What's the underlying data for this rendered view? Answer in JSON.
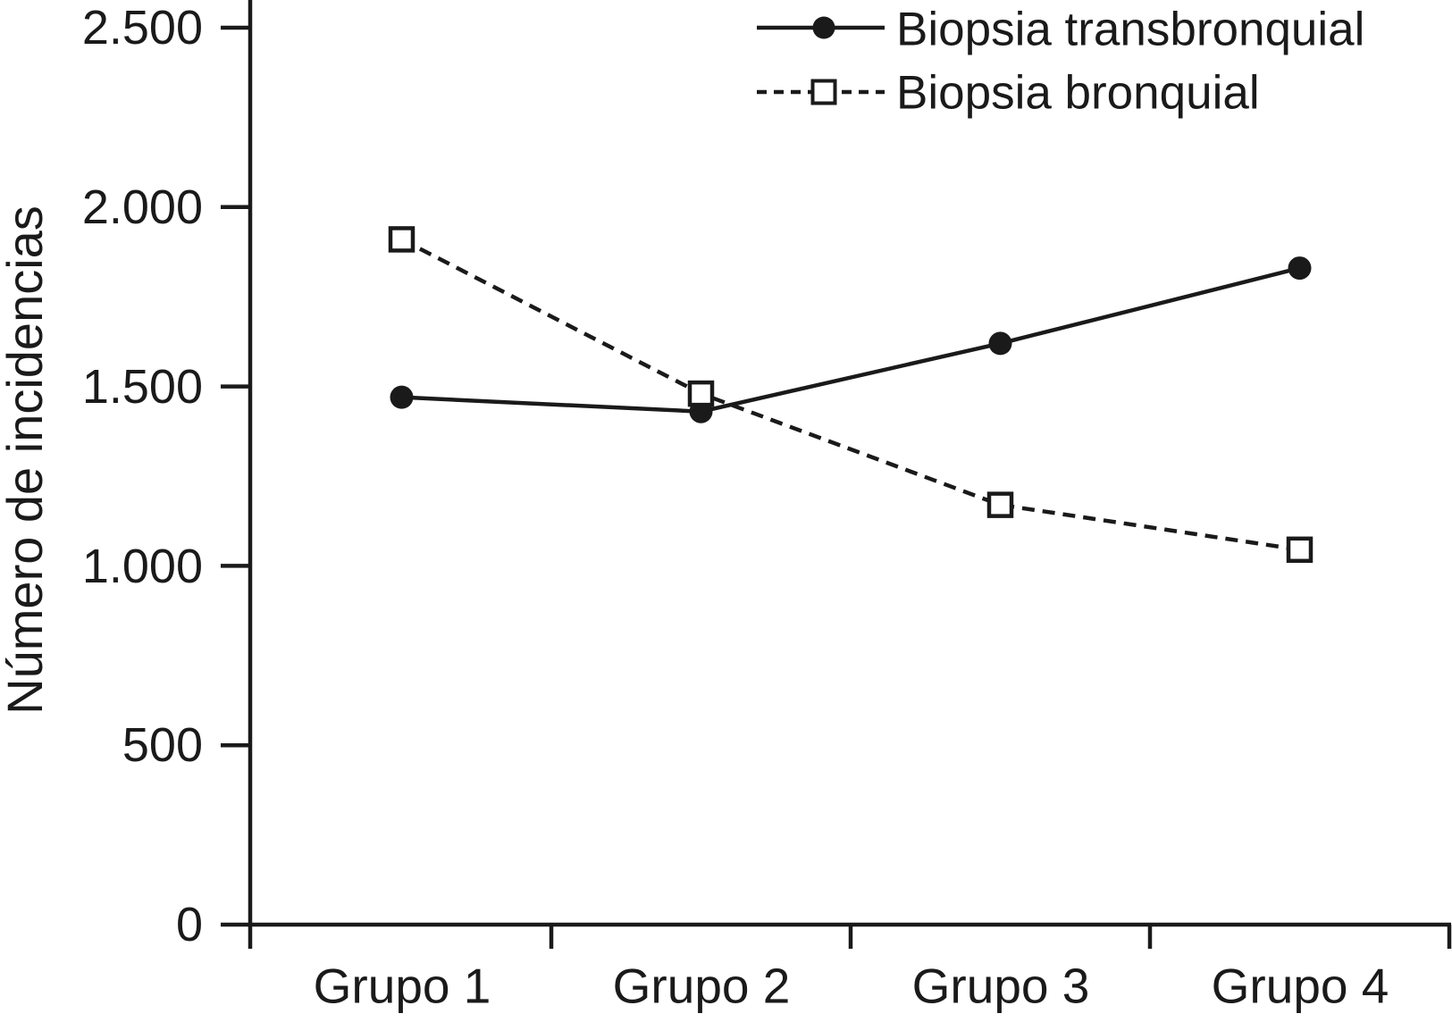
{
  "chart_data": {
    "type": "line",
    "title": "",
    "xlabel": "",
    "ylabel": "Número de incidencias",
    "categories": [
      "Grupo 1",
      "Grupo 2",
      "Grupo 3",
      "Grupo 4"
    ],
    "series": [
      {
        "name": "Biopsia transbronquial",
        "line_style": "solid",
        "marker": "filled-circle",
        "values": [
          1470,
          1430,
          1620,
          1830
        ]
      },
      {
        "name": "Biopsia bronquial",
        "line_style": "dashed",
        "marker": "open-square",
        "values": [
          1910,
          1480,
          1170,
          1045
        ]
      }
    ],
    "ylim": [
      0,
      2500
    ],
    "ytick_values": [
      0,
      500,
      1000,
      1500,
      2000,
      2500
    ],
    "ytick_labels": [
      "0",
      "500",
      "1.000",
      "1.500",
      "2.000",
      "2.500"
    ],
    "grid": false,
    "legend_position": "top-right",
    "ink_color": "#1a1a1a",
    "background_color": "#ffffff"
  }
}
